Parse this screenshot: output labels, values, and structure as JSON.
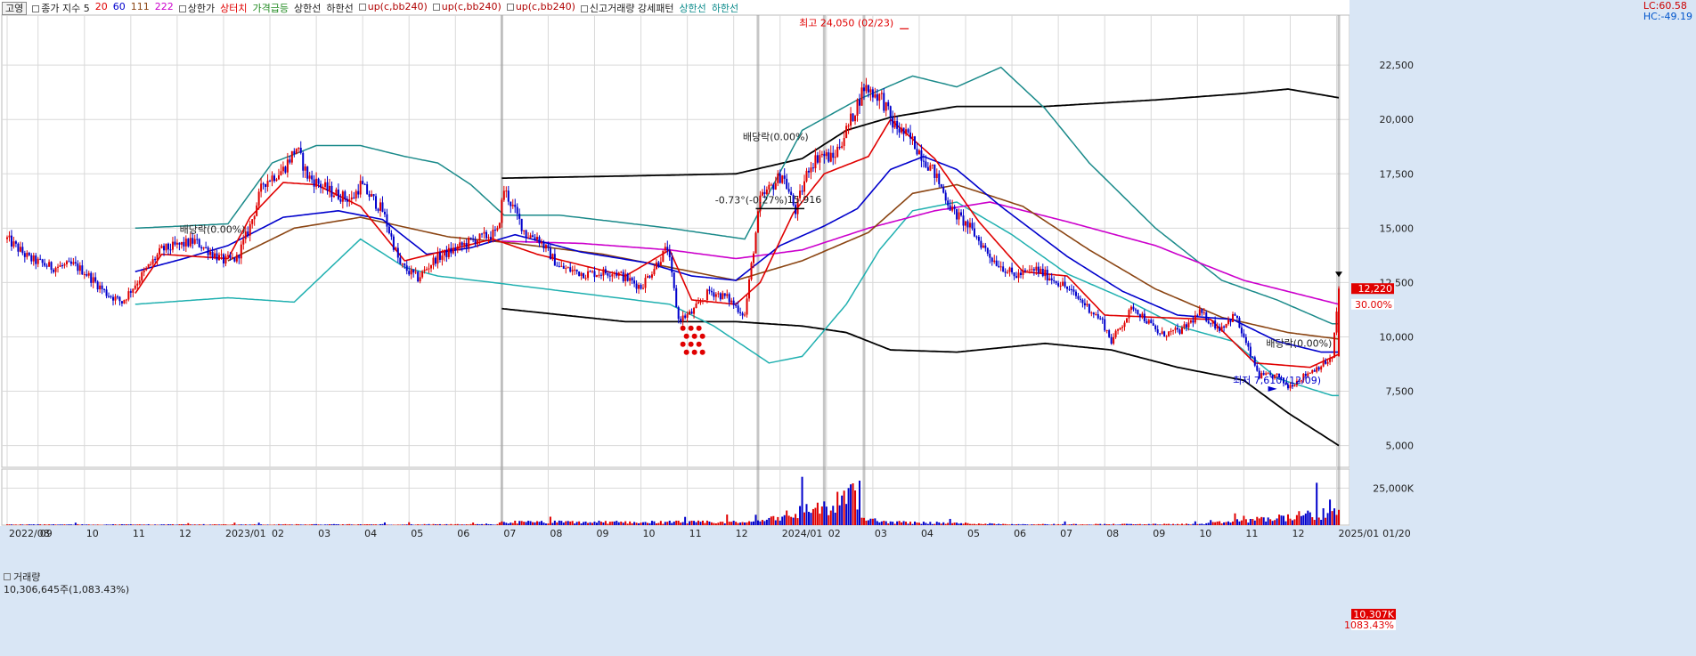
{
  "legend": {
    "stock_name": "고영",
    "items": [
      {
        "text": "종가 지수 5",
        "color": "#222222"
      },
      {
        "text": "20",
        "color": "#e00000"
      },
      {
        "text": "60",
        "color": "#0000cc"
      },
      {
        "text": "111",
        "color": "#8b4513"
      },
      {
        "text": "222",
        "color": "#cc00cc"
      },
      {
        "text": "상한가",
        "color": "#222222"
      },
      {
        "text": "상터치",
        "color": "#e00000"
      },
      {
        "text": "가격급등",
        "color": "#228b22"
      },
      {
        "text": "상한선",
        "color": "#222222"
      },
      {
        "text": "하한선",
        "color": "#222222"
      },
      {
        "text": "up(c,bb240)",
        "color": "#b00000"
      },
      {
        "text": "up(c,bb240)",
        "color": "#b00000"
      },
      {
        "text": "up(c,bb240)",
        "color": "#b00000"
      },
      {
        "text": "신고거래량 강세패턴",
        "color": "#222222"
      },
      {
        "text": "상한선",
        "color": "#0a8a8a"
      },
      {
        "text": "하한선",
        "color": "#0a8a8a"
      }
    ]
  },
  "corner": {
    "lc": "LC:60.58",
    "hc": "HC:-49.19",
    "lc_color": "#cc0000",
    "hc_color": "#0055cc"
  },
  "volume_panel": {
    "title": "거래량",
    "value_text": "10,306,645주(1,083.43%)"
  },
  "colors": {
    "up": "#e00000",
    "down": "#0000cc",
    "ma20": "#e00000",
    "ma60": "#0000cc",
    "ma111": "#8b4513",
    "ma222": "#cc00cc",
    "bb_teal": "#1a8a8a",
    "bb_cyan": "#20b0b0",
    "bb_black": "#000000",
    "grid": "#d9d9d9"
  },
  "chart_data": {
    "type": "candlestick",
    "price_axis": {
      "min": 4000,
      "max": 24800,
      "ticks": [
        5000,
        7500,
        10000,
        12500,
        15000,
        17500,
        20000,
        22500
      ],
      "tick_labels": [
        "5,000",
        "7,500",
        "10,000",
        "12,500",
        "15,000",
        "17,500",
        "20,000",
        "22,500"
      ]
    },
    "volume_axis": {
      "max": 30000,
      "ticks": [
        25000
      ],
      "tick_labels": [
        "25,000K"
      ]
    },
    "time_axis": {
      "labels": [
        "2022/08",
        "09",
        "10",
        "11",
        "12",
        "2023/01",
        "02",
        "03",
        "04",
        "05",
        "06",
        "07",
        "08",
        "09",
        "10",
        "11",
        "12",
        "2024/01",
        "02",
        "03",
        "04",
        "05",
        "06",
        "07",
        "08",
        "09",
        "10",
        "11",
        "12",
        "2025/01",
        "01/20"
      ],
      "label_idx": [
        0,
        14,
        35,
        56,
        77,
        98,
        119,
        140,
        161,
        182,
        203,
        224,
        245,
        266,
        287,
        308,
        329,
        350,
        371,
        392,
        413,
        434,
        455,
        476,
        497,
        518,
        539,
        560,
        581,
        602,
        622
      ],
      "count": 604
    },
    "price_keys": [
      [
        0,
        14500
      ],
      [
        10,
        13600
      ],
      [
        20,
        13200
      ],
      [
        30,
        13300
      ],
      [
        35,
        13000
      ],
      [
        45,
        12000
      ],
      [
        52,
        11600
      ],
      [
        60,
        12700
      ],
      [
        70,
        14000
      ],
      [
        85,
        14400
      ],
      [
        98,
        13500
      ],
      [
        104,
        13600
      ],
      [
        110,
        15100
      ],
      [
        116,
        17100
      ],
      [
        125,
        17700
      ],
      [
        131,
        18700
      ],
      [
        136,
        17400
      ],
      [
        146,
        16700
      ],
      [
        156,
        16300
      ],
      [
        160,
        17000
      ],
      [
        170,
        15800
      ],
      [
        178,
        13300
      ],
      [
        186,
        12700
      ],
      [
        194,
        13600
      ],
      [
        210,
        14400
      ],
      [
        222,
        14800
      ],
      [
        225,
        16800
      ],
      [
        235,
        14700
      ],
      [
        240,
        14600
      ],
      [
        250,
        13200
      ],
      [
        262,
        12900
      ],
      [
        275,
        13000
      ],
      [
        287,
        12300
      ],
      [
        299,
        14100
      ],
      [
        304,
        10800
      ],
      [
        310,
        11100
      ],
      [
        318,
        12100
      ],
      [
        326,
        11800
      ],
      [
        334,
        11000
      ],
      [
        341,
        16300
      ],
      [
        351,
        17500
      ],
      [
        357,
        15800
      ],
      [
        363,
        17800
      ],
      [
        368,
        18400
      ],
      [
        374,
        18200
      ],
      [
        381,
        19700
      ],
      [
        388,
        21500
      ],
      [
        396,
        21000
      ],
      [
        401,
        19800
      ],
      [
        410,
        19000
      ],
      [
        420,
        17500
      ],
      [
        428,
        15800
      ],
      [
        436,
        15000
      ],
      [
        446,
        13600
      ],
      [
        456,
        12800
      ],
      [
        466,
        13100
      ],
      [
        478,
        12400
      ],
      [
        488,
        11500
      ],
      [
        496,
        10700
      ],
      [
        500,
        9800
      ],
      [
        510,
        11400
      ],
      [
        522,
        10100
      ],
      [
        532,
        10300
      ],
      [
        540,
        11100
      ],
      [
        549,
        10400
      ],
      [
        556,
        11000
      ],
      [
        562,
        9400
      ],
      [
        567,
        8200
      ],
      [
        575,
        8200
      ],
      [
        580,
        7700
      ],
      [
        590,
        8400
      ],
      [
        600,
        9000
      ],
      [
        603,
        12220
      ]
    ],
    "vol_keys": [
      [
        0,
        500
      ],
      [
        223,
        600
      ],
      [
        224,
        2500
      ],
      [
        338,
        2500
      ],
      [
        339,
        7000
      ],
      [
        340,
        3200
      ],
      [
        370,
        16000
      ],
      [
        371,
        12500
      ],
      [
        386,
        30000
      ],
      [
        387,
        5000
      ],
      [
        400,
        2500
      ],
      [
        460,
        700
      ],
      [
        540,
        800
      ],
      [
        603,
        10307
      ]
    ],
    "ma20_keys": [
      [
        58,
        12000
      ],
      [
        70,
        13800
      ],
      [
        100,
        13600
      ],
      [
        110,
        15500
      ],
      [
        125,
        17100
      ],
      [
        140,
        17000
      ],
      [
        160,
        16000
      ],
      [
        180,
        13500
      ],
      [
        200,
        14000
      ],
      [
        220,
        14500
      ],
      [
        240,
        13800
      ],
      [
        280,
        12800
      ],
      [
        300,
        14000
      ],
      [
        310,
        11700
      ],
      [
        330,
        11500
      ],
      [
        341,
        12500
      ],
      [
        356,
        15700
      ],
      [
        370,
        17500
      ],
      [
        390,
        18300
      ],
      [
        400,
        20000
      ],
      [
        420,
        18200
      ],
      [
        440,
        15300
      ],
      [
        460,
        13000
      ],
      [
        480,
        12800
      ],
      [
        497,
        11000
      ],
      [
        520,
        10900
      ],
      [
        545,
        10800
      ],
      [
        565,
        8800
      ],
      [
        590,
        8600
      ],
      [
        603,
        9200
      ]
    ],
    "ma60_keys": [
      [
        58,
        13000
      ],
      [
        80,
        13600
      ],
      [
        100,
        14200
      ],
      [
        125,
        15500
      ],
      [
        150,
        15800
      ],
      [
        170,
        15400
      ],
      [
        190,
        13800
      ],
      [
        210,
        14100
      ],
      [
        230,
        14700
      ],
      [
        260,
        13900
      ],
      [
        290,
        13400
      ],
      [
        310,
        12800
      ],
      [
        330,
        12600
      ],
      [
        350,
        14200
      ],
      [
        370,
        15100
      ],
      [
        385,
        15900
      ],
      [
        400,
        17700
      ],
      [
        415,
        18300
      ],
      [
        430,
        17700
      ],
      [
        450,
        16000
      ],
      [
        480,
        13700
      ],
      [
        505,
        12100
      ],
      [
        530,
        11000
      ],
      [
        555,
        10800
      ],
      [
        575,
        9800
      ],
      [
        595,
        9300
      ],
      [
        603,
        9300
      ]
    ],
    "ma111_keys": [
      [
        100,
        13500
      ],
      [
        130,
        15000
      ],
      [
        160,
        15500
      ],
      [
        200,
        14600
      ],
      [
        230,
        14300
      ],
      [
        270,
        13800
      ],
      [
        300,
        13200
      ],
      [
        330,
        12600
      ],
      [
        360,
        13500
      ],
      [
        390,
        14800
      ],
      [
        410,
        16600
      ],
      [
        430,
        17000
      ],
      [
        460,
        16000
      ],
      [
        490,
        14000
      ],
      [
        520,
        12200
      ],
      [
        550,
        10900
      ],
      [
        580,
        10200
      ],
      [
        603,
        9900
      ]
    ],
    "ma222_keys": [
      [
        224,
        14400
      ],
      [
        260,
        14300
      ],
      [
        300,
        14000
      ],
      [
        330,
        13600
      ],
      [
        360,
        14000
      ],
      [
        390,
        15000
      ],
      [
        420,
        15800
      ],
      [
        445,
        16200
      ],
      [
        480,
        15300
      ],
      [
        520,
        14200
      ],
      [
        560,
        12600
      ],
      [
        603,
        11500
      ]
    ],
    "bb_teal_up_keys": [
      [
        58,
        15000
      ],
      [
        80,
        15100
      ],
      [
        100,
        15200
      ],
      [
        120,
        18000
      ],
      [
        140,
        18800
      ],
      [
        160,
        18800
      ],
      [
        180,
        18300
      ],
      [
        195,
        18000
      ],
      [
        210,
        17000
      ],
      [
        225,
        15600
      ],
      [
        250,
        15600
      ],
      [
        300,
        15000
      ],
      [
        334,
        14500
      ],
      [
        360,
        19500
      ],
      [
        385,
        20900
      ],
      [
        410,
        22000
      ],
      [
        430,
        21500
      ],
      [
        450,
        22400
      ],
      [
        470,
        20500
      ],
      [
        490,
        18000
      ],
      [
        520,
        15000
      ],
      [
        550,
        12600
      ],
      [
        575,
        11700
      ],
      [
        600,
        10600
      ],
      [
        603,
        10600
      ]
    ],
    "bb_cyan_lo_keys": [
      [
        58,
        11500
      ],
      [
        100,
        11800
      ],
      [
        130,
        11600
      ],
      [
        160,
        14500
      ],
      [
        180,
        13200
      ],
      [
        195,
        12800
      ],
      [
        220,
        12500
      ],
      [
        260,
        12000
      ],
      [
        300,
        11500
      ],
      [
        320,
        10500
      ],
      [
        345,
        8800
      ],
      [
        360,
        9100
      ],
      [
        380,
        11500
      ],
      [
        395,
        14000
      ],
      [
        410,
        15800
      ],
      [
        430,
        16200
      ],
      [
        455,
        14700
      ],
      [
        480,
        12900
      ],
      [
        505,
        11800
      ],
      [
        530,
        10500
      ],
      [
        555,
        9800
      ],
      [
        575,
        8100
      ],
      [
        600,
        7300
      ],
      [
        603,
        7300
      ]
    ],
    "bb_black_up_keys": [
      [
        224,
        17300
      ],
      [
        280,
        17400
      ],
      [
        330,
        17500
      ],
      [
        360,
        18200
      ],
      [
        380,
        19500
      ],
      [
        400,
        20100
      ],
      [
        430,
        20600
      ],
      [
        470,
        20600
      ],
      [
        520,
        20900
      ],
      [
        560,
        21200
      ],
      [
        580,
        21400
      ],
      [
        603,
        21000
      ]
    ],
    "bb_black_lo_keys": [
      [
        224,
        11300
      ],
      [
        280,
        10700
      ],
      [
        330,
        10700
      ],
      [
        360,
        10500
      ],
      [
        380,
        10200
      ],
      [
        400,
        9400
      ],
      [
        430,
        9300
      ],
      [
        470,
        9700
      ],
      [
        500,
        9400
      ],
      [
        530,
        8600
      ],
      [
        560,
        8000
      ],
      [
        580,
        6500
      ],
      [
        603,
        5000
      ]
    ],
    "vertical_lines": [
      224,
      340,
      370,
      388,
      603
    ],
    "annotations": [
      {
        "text": "최고 24,050 (02/23)",
        "idx": 380,
        "price": 24050,
        "color": "#e00000"
      },
      {
        "text": "최저 7,610 (12/09)",
        "idx": 575,
        "price": 7610,
        "color": "#0000cc"
      },
      {
        "text": "배당락(0.00%)",
        "idx": 93,
        "price": 14550,
        "color": "#222222"
      },
      {
        "text": "배당락(0.00%)",
        "idx": 348,
        "price": 18800,
        "color": "#222222"
      },
      {
        "text": "배당락(0.00%)",
        "idx": 585,
        "price": 9300,
        "color": "#222222"
      },
      {
        "text": "-0.73°(-0.27%)",
        "idx": 337,
        "price": 15900,
        "color": "#222222"
      },
      {
        "text": "15,916",
        "idx": 361,
        "price": 15916,
        "color": "#222222"
      }
    ],
    "price_flags": [
      {
        "text": "12,220",
        "price": 12220,
        "bg": "#e00000",
        "fg": "#ffffff"
      },
      {
        "text": "30.00%",
        "price": 11500,
        "bg": "#ffffff",
        "fg": "#e00000"
      }
    ],
    "volume_flags": [
      {
        "text": "10,307K",
        "bg": "#e00000",
        "fg": "#ffffff"
      },
      {
        "text": "1083.43%",
        "bg": "#ffffff",
        "fg": "#e00000"
      }
    ]
  }
}
